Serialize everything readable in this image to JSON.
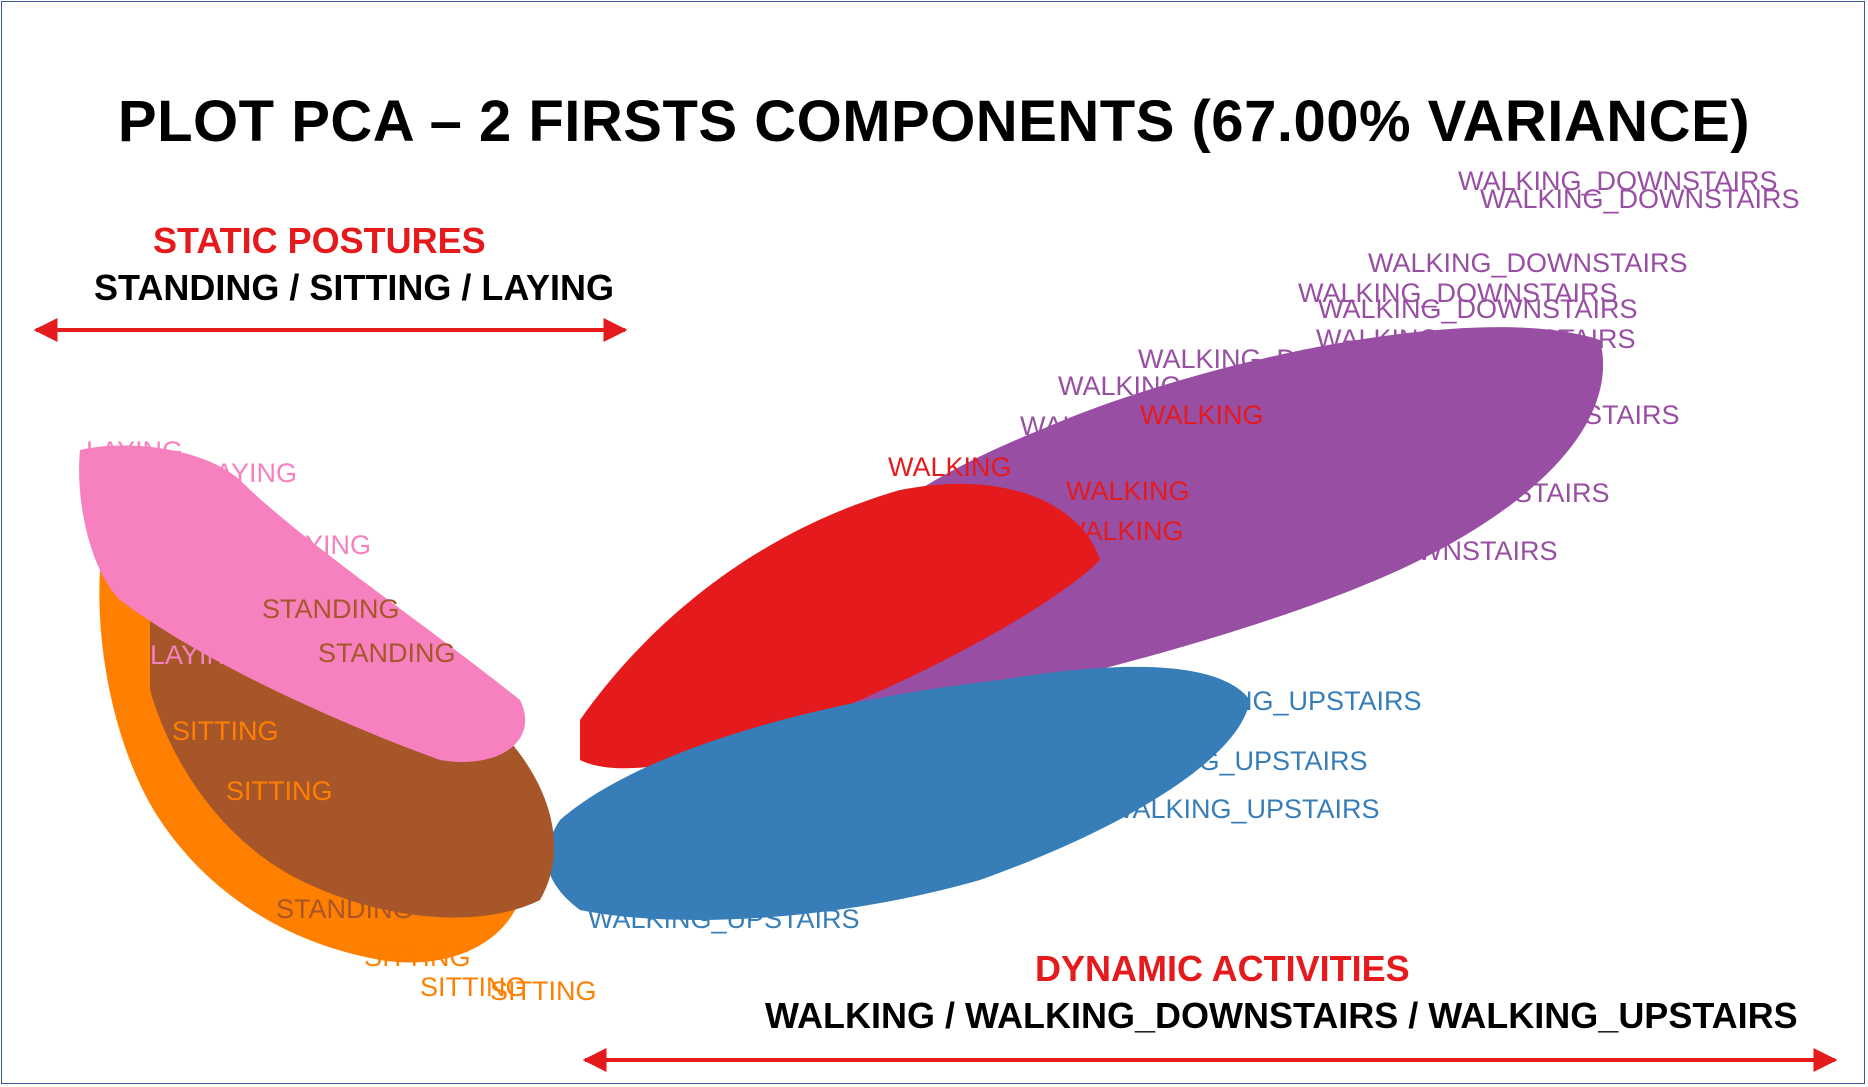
{
  "chart_data": {
    "type": "scatter",
    "title": "PLOT PCA – 2 FIRSTS COMPONENTS (67.00% VARIANCE)",
    "xlabel": "",
    "ylabel": "",
    "grid": false,
    "legend": "none",
    "point_marker": "class label text",
    "series": [
      {
        "name": "LAYING",
        "color": "#f781bf"
      },
      {
        "name": "STANDING",
        "color": "#a65628"
      },
      {
        "name": "SITTING",
        "color": "#ff7f00"
      },
      {
        "name": "WALKING",
        "color": "#e41a1c"
      },
      {
        "name": "WALKING_DOWNSTAIRS",
        "color": "#984ea3"
      },
      {
        "name": "WALKING_UPSTAIRS",
        "color": "#377eb8"
      }
    ],
    "annotations": {
      "static_heading": "STATIC POSTURES",
      "static_sub": "STANDING / SITTING / LAYING",
      "dynamic_heading": "DYNAMIC ACTIVITIES",
      "dynamic_sub": "WALKING / WALKING_DOWNSTAIRS / WALKING_UPSTAIRS",
      "arrow_color": "#e41a1c"
    }
  }
}
